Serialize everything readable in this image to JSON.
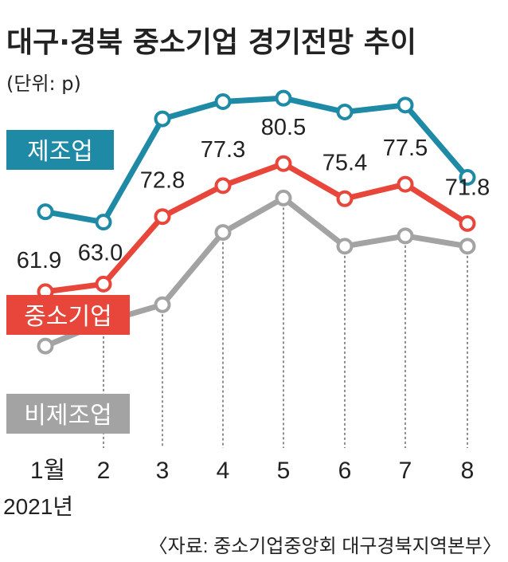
{
  "title": "대구·경북 중소기업 경기전망 추이",
  "unit": "(단위: p)",
  "year_label": "2021년",
  "source": "〈자료: 중소기업중앙회 대구경북지역본부〉",
  "colors": {
    "manufacturing": "#1e8aa6",
    "sme": "#e8463a",
    "non_manufacturing": "#a3a3a3",
    "text": "#222222",
    "guide": "#444444"
  },
  "chart_data": {
    "type": "line",
    "categories": [
      "1월",
      "2",
      "3",
      "4",
      "5",
      "6",
      "7",
      "8"
    ],
    "ylim": [
      40,
      95
    ],
    "grid": false,
    "series": [
      {
        "name": "제조업",
        "key": "manufacturing",
        "values": [
          73.5,
          72.0,
          87.0,
          89.5,
          90.0,
          88.0,
          89.0,
          78.5
        ]
      },
      {
        "name": "중소기업",
        "key": "sme",
        "values": [
          61.9,
          63.0,
          72.8,
          77.3,
          80.5,
          75.4,
          77.5,
          71.8
        ],
        "labels": [
          "61.9",
          "63.0",
          "72.8",
          "77.3",
          "80.5",
          "75.4",
          "77.5",
          "71.8"
        ]
      },
      {
        "name": "비제조업",
        "key": "non_manufacturing",
        "values": [
          54.0,
          57.5,
          60.0,
          70.5,
          75.5,
          68.5,
          70.0,
          68.5
        ]
      }
    ]
  }
}
